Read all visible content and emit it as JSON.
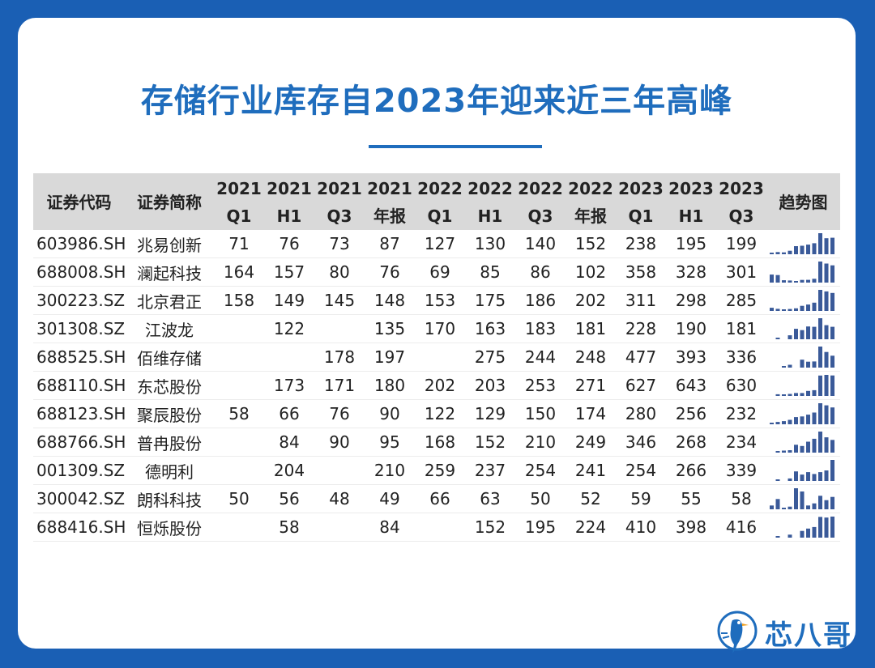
{
  "title": "存储行业库存自2023年迎来近三年高峰",
  "accent_color": "#1f6dbd",
  "bar_color": "#3a5a99",
  "table": {
    "headers": [
      [
        "证券代码"
      ],
      [
        "证券简称"
      ],
      [
        "2021",
        "Q1"
      ],
      [
        "2021",
        "H1"
      ],
      [
        "2021",
        "Q3"
      ],
      [
        "2021",
        "年报"
      ],
      [
        "2022",
        "Q1"
      ],
      [
        "2022",
        "H1"
      ],
      [
        "2022",
        "Q3"
      ],
      [
        "2022",
        "年报"
      ],
      [
        "2023",
        "Q1"
      ],
      [
        "2023",
        "H1"
      ],
      [
        "2023",
        "Q3"
      ],
      [
        "趋势图"
      ]
    ],
    "rows": [
      {
        "code": "603986.SH",
        "name": "兆易创新",
        "values": [
          "71",
          "76",
          "73",
          "87",
          "127",
          "130",
          "140",
          "152",
          "238",
          "195",
          "199"
        ]
      },
      {
        "code": "688008.SH",
        "name": "澜起科技",
        "values": [
          "164",
          "157",
          "80",
          "76",
          "69",
          "85",
          "86",
          "102",
          "358",
          "328",
          "301"
        ]
      },
      {
        "code": "300223.SZ",
        "name": "北京君正",
        "values": [
          "158",
          "149",
          "145",
          "148",
          "153",
          "175",
          "186",
          "202",
          "311",
          "298",
          "285"
        ]
      },
      {
        "code": "301308.SZ",
        "name": "江波龙",
        "values": [
          "",
          "122",
          "",
          "135",
          "170",
          "163",
          "183",
          "181",
          "228",
          "190",
          "181"
        ]
      },
      {
        "code": "688525.SH",
        "name": "佰维存储",
        "values": [
          "",
          "",
          "178",
          "197",
          "",
          "275",
          "244",
          "248",
          "477",
          "393",
          "336"
        ]
      },
      {
        "code": "688110.SH",
        "name": "东芯股份",
        "values": [
          "",
          "173",
          "171",
          "180",
          "202",
          "203",
          "253",
          "271",
          "627",
          "643",
          "630"
        ]
      },
      {
        "code": "688123.SH",
        "name": "聚辰股份",
        "values": [
          "58",
          "66",
          "76",
          "90",
          "122",
          "129",
          "150",
          "174",
          "280",
          "256",
          "232"
        ]
      },
      {
        "code": "688766.SH",
        "name": "普冉股份",
        "values": [
          "",
          "84",
          "90",
          "95",
          "168",
          "152",
          "210",
          "249",
          "346",
          "268",
          "234"
        ]
      },
      {
        "code": "001309.SZ",
        "name": "德明利",
        "values": [
          "",
          "204",
          "",
          "210",
          "259",
          "237",
          "254",
          "241",
          "254",
          "266",
          "339"
        ]
      },
      {
        "code": "300042.SZ",
        "name": "朗科科技",
        "values": [
          "50",
          "56",
          "48",
          "49",
          "66",
          "63",
          "50",
          "52",
          "59",
          "55",
          "58"
        ]
      },
      {
        "code": "688416.SH",
        "name": "恒烁股份",
        "values": [
          "",
          "58",
          "",
          "84",
          "",
          "152",
          "195",
          "224",
          "410",
          "398",
          "416"
        ]
      }
    ]
  },
  "logo": {
    "text": "芯八哥",
    "icon": "bird-logo-icon"
  }
}
